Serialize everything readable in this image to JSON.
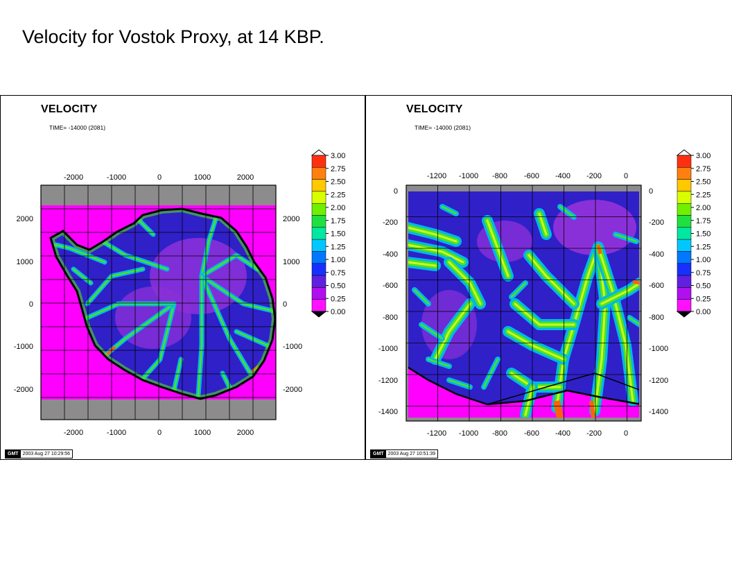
{
  "slide_title": "Velocity for Vostok Proxy, at 14 KBP.",
  "panels": [
    {
      "title": "VELOCITY",
      "time": "TIME= -14000 (2081)",
      "top_ticks": [
        "-2000",
        "-1000",
        "0",
        "1000",
        "2000"
      ],
      "bottom_ticks": [
        "-2000",
        "-1000",
        "0",
        "1000",
        "2000"
      ],
      "left_ticks": [
        "2000",
        "1000",
        "0",
        "-1000",
        "-2000"
      ],
      "right_ticks": [
        "2000",
        "1000",
        "0",
        "-1000",
        "-2000"
      ],
      "gmt_logo": "GMT",
      "gmt_date": "2003 Aug 27 10:29:56"
    },
    {
      "title": "VELOCITY",
      "time": "TIME= -14000 (2081)",
      "top_ticks": [
        "-1200",
        "-1000",
        "-800",
        "-600",
        "-400",
        "-200",
        "0"
      ],
      "bottom_ticks": [
        "-1200",
        "-1000",
        "-800",
        "-600",
        "-400",
        "-200",
        "0"
      ],
      "left_ticks": [
        "0",
        "-200",
        "-400",
        "-600",
        "-800",
        "-1000",
        "-1200",
        "-1400"
      ],
      "right_ticks": [
        "0",
        "-200",
        "-400",
        "-600",
        "-800",
        "-1000",
        "-1200",
        "-1400"
      ],
      "gmt_logo": "GMT",
      "gmt_date": "2003 Aug 27 10:51:39"
    }
  ],
  "colorbar": {
    "labels": [
      "3.00",
      "2.75",
      "2.50",
      "2.25",
      "2.00",
      "1.75",
      "1.50",
      "1.25",
      "1.00",
      "0.75",
      "0.50",
      "0.25",
      "0.00"
    ],
    "colors": [
      "#ff3010",
      "#ff8010",
      "#ffc800",
      "#d8ff00",
      "#70f000",
      "#20e040",
      "#00e8a0",
      "#00c8ff",
      "#0078ff",
      "#1830ff",
      "#6020e0",
      "#b010f0",
      "#ff10ff"
    ]
  },
  "map_colors": {
    "ocean": "#ff00ff",
    "frame_band": "#8c8c8c",
    "interior": "#8a30d8",
    "slow": "#3020c8",
    "mid": "#00b8e8",
    "fast": "#50e020",
    "fastest": "#ff6010"
  }
}
